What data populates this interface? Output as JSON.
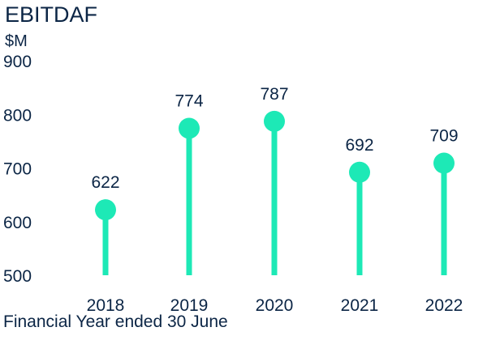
{
  "chart_data": {
    "type": "lollipop",
    "title": "EBITDAF",
    "ylabel": "$M",
    "xlabel": "Financial Year ended 30 June",
    "categories": [
      "2018",
      "2019",
      "2020",
      "2021",
      "2022"
    ],
    "values": [
      622,
      774,
      787,
      692,
      709
    ],
    "data_labels": [
      "622",
      "774",
      "787",
      "692",
      "709"
    ],
    "yticks": [
      500,
      600,
      700,
      800,
      900
    ],
    "ylim": [
      500,
      900
    ],
    "grid": false,
    "legend": "none",
    "colors": {
      "mark": "#1de9b6",
      "text": "#0b2545"
    }
  }
}
